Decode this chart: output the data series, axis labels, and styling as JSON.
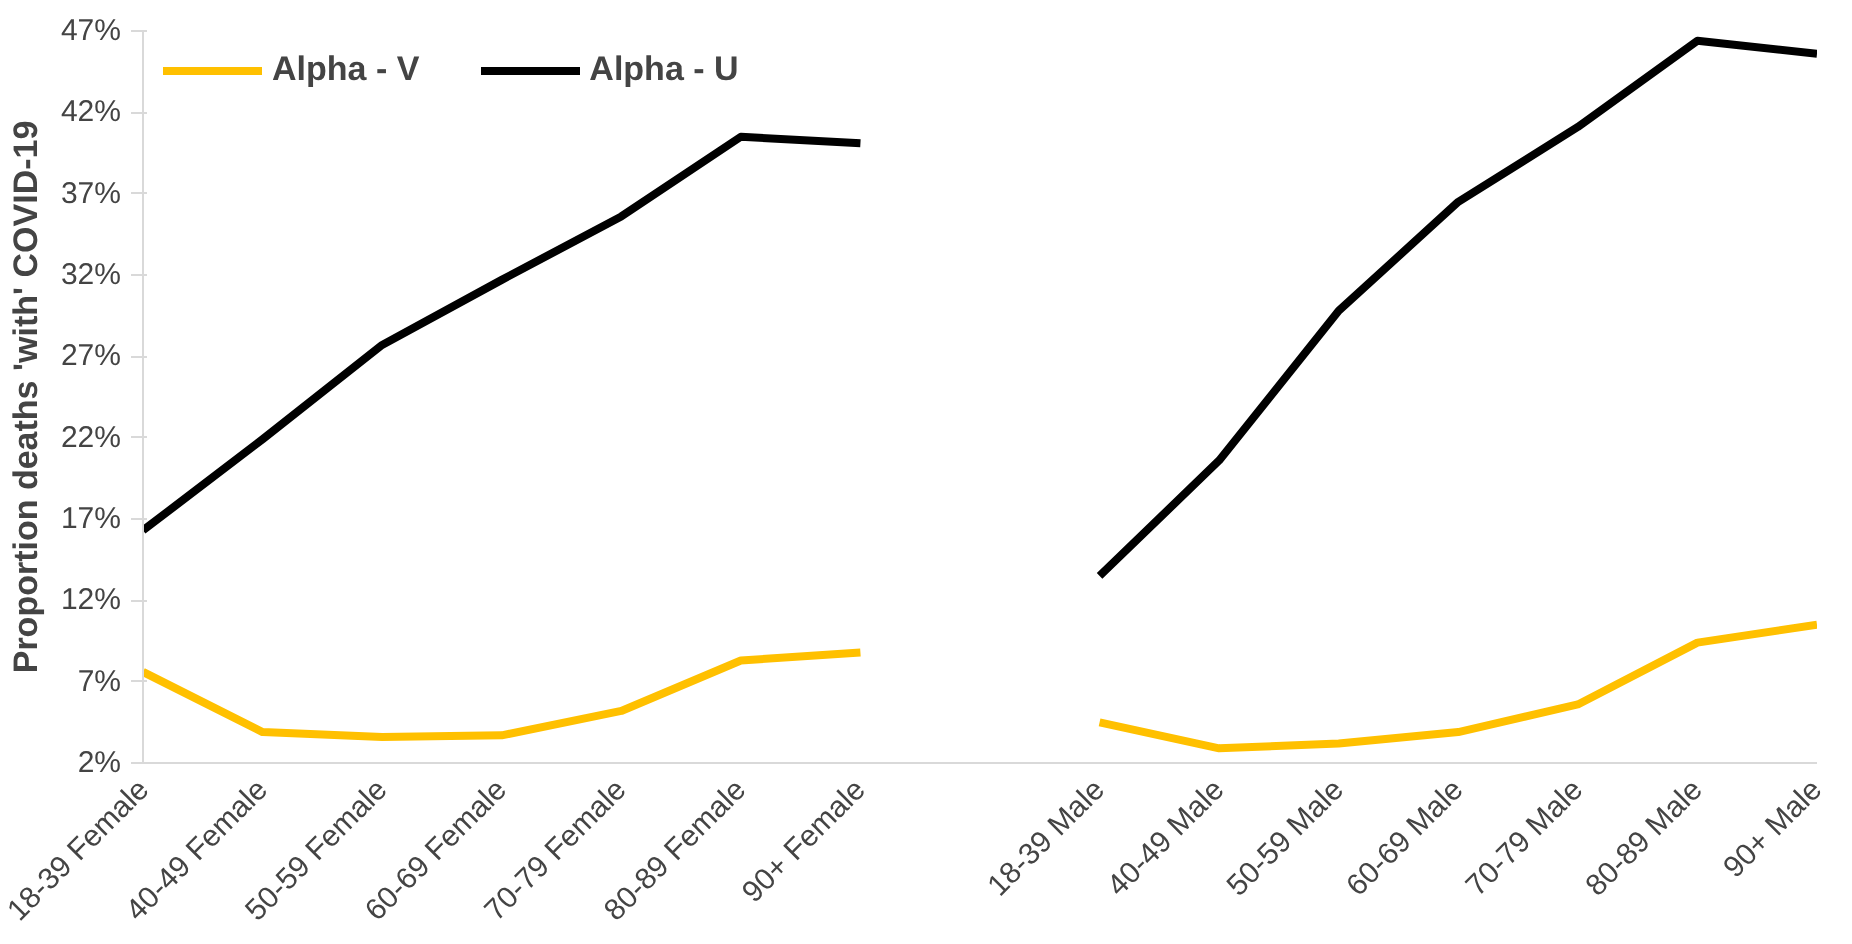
{
  "chart_data": {
    "type": "line",
    "ylabel": "Proportion deaths 'with' COVID-19",
    "categories": [
      "18-39 Female",
      "40-49 Female",
      "50-59 Female",
      "60-69 Female",
      "70-79 Female",
      "80-89 Female",
      "90+ Female",
      null,
      "18-39 Male",
      "40-49 Male",
      "50-59 Male",
      "60-69 Male",
      "70-79 Male",
      "80-89 Male",
      "90+ Male"
    ],
    "series": [
      {
        "name": "Alpha - V",
        "color": "#ffc000",
        "values": [
          7.6,
          3.9,
          3.6,
          3.7,
          5.2,
          8.3,
          8.8,
          null,
          4.5,
          2.9,
          3.2,
          3.9,
          5.6,
          9.4,
          10.5
        ]
      },
      {
        "name": "Alpha - U",
        "color": "#000000",
        "values": [
          16.3,
          21.9,
          27.7,
          31.7,
          35.6,
          40.5,
          40.1,
          null,
          13.5,
          20.6,
          29.8,
          36.5,
          41.1,
          46.4,
          45.6
        ]
      }
    ],
    "ylim": [
      2,
      47
    ],
    "yticks": [
      {
        "value": 2,
        "label": "2%"
      },
      {
        "value": 7,
        "label": "7%"
      },
      {
        "value": 12,
        "label": "12%"
      },
      {
        "value": 17,
        "label": "17%"
      },
      {
        "value": 22,
        "label": "22%"
      },
      {
        "value": 27,
        "label": "27%"
      },
      {
        "value": 32,
        "label": "32%"
      },
      {
        "value": 37,
        "label": "37%"
      },
      {
        "value": 42,
        "label": "42%"
      },
      {
        "value": 47,
        "label": "47%"
      }
    ],
    "grid": false,
    "legend": "top left",
    "marker": "none",
    "line_style": "solid"
  }
}
